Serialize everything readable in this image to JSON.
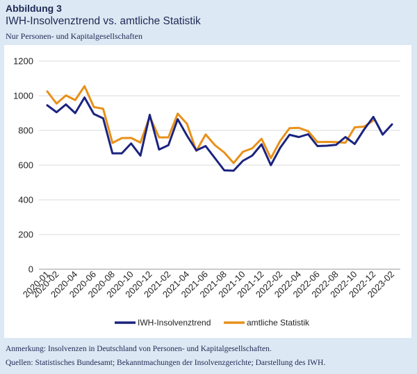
{
  "figure": {
    "label": "Abbildung 3",
    "title": "IWH-Insolvenztrend vs. amtliche Statistik",
    "subtitle": "Nur Personen- und Kapitalgesellschaften"
  },
  "notes": {
    "remark": "Anmerkung: Insolvenzen in Deutschland von Personen- und Kapitalgesellschaften.",
    "sources": "Quellen: Statistisches Bundesamt; Bekanntmachungen der Insolvenzgerichte; Darstellung des IWH."
  },
  "chart_data": {
    "type": "line",
    "x": [
      "2020-01",
      "2020-02",
      "2020-03",
      "2020-04",
      "2020-05",
      "2020-06",
      "2020-07",
      "2020-08",
      "2020-09",
      "2020-10",
      "2020-11",
      "2020-12",
      "2021-01",
      "2021-02",
      "2021-03",
      "2021-04",
      "2021-05",
      "2021-06",
      "2021-07",
      "2021-08",
      "2021-09",
      "2021-10",
      "2021-11",
      "2021-12",
      "2022-01",
      "2022-02",
      "2022-03",
      "2022-04",
      "2022-05",
      "2022-06",
      "2022-07",
      "2022-08",
      "2022-09",
      "2022-10",
      "2022-11",
      "2022-12",
      "2023-01",
      "2023-02"
    ],
    "x_tick_labels": [
      "2020-01",
      "2020-02",
      "2020-04",
      "2020-06",
      "2020-08",
      "2020-10",
      "2020-12",
      "2021-02",
      "2021-04",
      "2021-06",
      "2021-08",
      "2021-10",
      "2021-12",
      "2022-02",
      "2022-04",
      "2022-06",
      "2022-08",
      "2022-10",
      "2022-12",
      "2023-02"
    ],
    "series": [
      {
        "name": "IWH-Insolvenztrend",
        "color": "#1a237e",
        "values": [
          945,
          905,
          950,
          900,
          990,
          895,
          870,
          668,
          668,
          725,
          655,
          890,
          690,
          715,
          865,
          770,
          685,
          710,
          640,
          570,
          568,
          625,
          655,
          720,
          600,
          700,
          775,
          762,
          778,
          710,
          712,
          717,
          762,
          722,
          805,
          878,
          776,
          835
        ]
      },
      {
        "name": "amtliche Statistik",
        "color": "#e8901a",
        "values": [
          1025,
          955,
          1002,
          975,
          1055,
          935,
          925,
          728,
          756,
          757,
          730,
          880,
          760,
          760,
          897,
          838,
          682,
          777,
          715,
          673,
          612,
          677,
          697,
          752,
          640,
          740,
          813,
          815,
          796,
          733,
          734,
          733,
          729,
          818,
          822,
          857,
          null,
          null
        ]
      }
    ],
    "ylim": [
      0,
      1200
    ],
    "yticks": [
      0,
      200,
      400,
      600,
      800,
      1000,
      1200
    ],
    "grid": "horizontal",
    "legend_position": "bottom"
  }
}
